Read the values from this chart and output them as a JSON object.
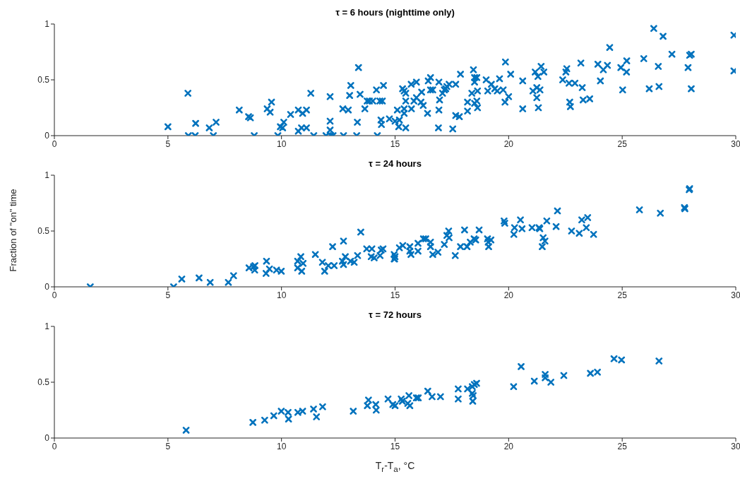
{
  "chart_data": [
    {
      "type": "scatter",
      "title": "τ = 6 hours (nighttime only)",
      "color": "#0072bd",
      "marker": "cross",
      "grid": false,
      "xlim": [
        0,
        30
      ],
      "xticks": [
        0,
        5,
        10,
        15,
        20,
        25,
        30
      ],
      "ylim": [
        0,
        1
      ],
      "yticks": [
        0,
        0.5,
        1
      ],
      "x": [
        5.0,
        5.88,
        5.9,
        6.2,
        6.22,
        6.82,
        7.0,
        7.12,
        8.14,
        8.55,
        8.63,
        8.8,
        9.37,
        9.5,
        9.56,
        9.84,
        9.95,
        10.1,
        10.05,
        10.4,
        10.74,
        10.93,
        11.1,
        10.74,
        10.88,
        11.1,
        11.29,
        11.42,
        11.96,
        12.17,
        12.27,
        12.14,
        12.14,
        12.14,
        12.7,
        12.94,
        12.73,
        13.0,
        13.05,
        13.31,
        13.34,
        13.39,
        13.46,
        13.67,
        13.77,
        13.87,
        14.02,
        14.33,
        14.44,
        14.18,
        14.49,
        14.22,
        14.38,
        14.4,
        14.75,
        15.0,
        15.19,
        15.16,
        15.47,
        15.1,
        15.4,
        15.4,
        15.33,
        15.4,
        15.47,
        15.47,
        15.71,
        15.94,
        15.72,
        15.83,
        15.94,
        16.14,
        16.24,
        16.17,
        16.43,
        16.46,
        16.56,
        16.56,
        16.66,
        16.93,
        16.96,
        16.93,
        16.91,
        17.09,
        17.17,
        17.28,
        17.38,
        17.23,
        17.54,
        17.67,
        17.83,
        17.67,
        17.88,
        18.19,
        18.19,
        18.38,
        18.45,
        18.5,
        18.5,
        18.6,
        18.63,
        18.6,
        18.63,
        18.5,
        19.01,
        19.24,
        19.08,
        19.39,
        19.6,
        19.5,
        19.76,
        19.84,
        20.0,
        19.86,
        20.09,
        20.62,
        20.62,
        21.07,
        21.17,
        21.24,
        21.24,
        21.29,
        21.38,
        21.31,
        21.43,
        21.55,
        22.38,
        22.52,
        22.56,
        22.66,
        22.92,
        22.69,
        22.72,
        23.18,
        23.24,
        23.28,
        23.57,
        23.93,
        24.04,
        24.17,
        24.35,
        24.45,
        24.94,
        25.02,
        25.2,
        25.19,
        25.95,
        26.19,
        26.39,
        26.59,
        26.62,
        26.8,
        27.19,
        27.9,
        27.97,
        28.04,
        28.04,
        29.92,
        29.92
      ],
      "values": [
        0.08,
        0.38,
        0,
        0,
        0.11,
        0.07,
        0,
        0.12,
        0.23,
        0.17,
        0.16,
        0,
        0.24,
        0.21,
        0.3,
        0,
        0.08,
        0.12,
        0.07,
        0.19,
        0.23,
        0.2,
        0.23,
        0.04,
        0.07,
        0.07,
        0.38,
        0,
        0,
        0,
        0,
        0.35,
        0.13,
        0.05,
        0.24,
        0.23,
        0,
        0.36,
        0.45,
        0,
        0.12,
        0.61,
        0.37,
        0.24,
        0.31,
        0.31,
        0.31,
        0.31,
        0.31,
        0.41,
        0.45,
        0,
        0.14,
        0.1,
        0.15,
        0.13,
        0.14,
        0.08,
        0.07,
        0.23,
        0.24,
        0.2,
        0.42,
        0.4,
        0.38,
        0.31,
        0.46,
        0.48,
        0.24,
        0.31,
        0.34,
        0.3,
        0.27,
        0.39,
        0.2,
        0.49,
        0.52,
        0.41,
        0.41,
        0.48,
        0.32,
        0.23,
        0.07,
        0.38,
        0.41,
        0.44,
        0.46,
        0.42,
        0.06,
        0.18,
        0.17,
        0.46,
        0.55,
        0.3,
        0.22,
        0.38,
        0.59,
        0.52,
        0.48,
        0.52,
        0.4,
        0.31,
        0.25,
        0.29,
        0.5,
        0.46,
        0.4,
        0.42,
        0.51,
        0.4,
        0.41,
        0.3,
        0.35,
        0.66,
        0.55,
        0.49,
        0.24,
        0.4,
        0.57,
        0.43,
        0.34,
        0.53,
        0.41,
        0.25,
        0.62,
        0.57,
        0.5,
        0.57,
        0.6,
        0.47,
        0.47,
        0.3,
        0.26,
        0.65,
        0.43,
        0.32,
        0.33,
        0.64,
        0.49,
        0.59,
        0.63,
        0.79,
        0.61,
        0.41,
        0.67,
        0.57,
        0.69,
        0.42,
        0.96,
        0.62,
        0.44,
        0.89,
        0.73,
        0.61,
        0.72,
        0.73,
        0.42,
        0.9,
        0.58
      ]
    },
    {
      "type": "scatter",
      "title": "τ = 24 hours",
      "ylabel": "Fraction of \"on\" time",
      "color": "#0072bd",
      "marker": "cross",
      "grid": false,
      "xlim": [
        0,
        30
      ],
      "xticks": [
        0,
        5,
        10,
        15,
        20,
        25,
        30
      ],
      "ylim": [
        0,
        1
      ],
      "yticks": [
        0,
        0.5,
        1
      ],
      "x": [
        1.58,
        5.25,
        5.61,
        6.37,
        6.86,
        7.66,
        7.89,
        8.57,
        8.77,
        8.82,
        8.83,
        9.34,
        9.32,
        9.47,
        9.78,
        9.99,
        10.71,
        10.71,
        10.85,
        10.89,
        10.95,
        11.49,
        11.8,
        11.9,
        12.06,
        12.32,
        12.25,
        12.73,
        12.68,
        12.73,
        12.81,
        13.04,
        13.2,
        13.35,
        13.49,
        13.75,
        13.98,
        13.95,
        14.08,
        14.34,
        14.39,
        14.47,
        14.96,
        14.96,
        15.0,
        14.98,
        15.19,
        15.34,
        15.65,
        15.65,
        15.7,
        16.01,
        16.01,
        16.25,
        16.35,
        16.56,
        16.56,
        16.66,
        16.89,
        17.17,
        17.28,
        17.36,
        17.38,
        17.65,
        17.88,
        18.06,
        18.17,
        18.31,
        18.48,
        18.55,
        18.7,
        19.07,
        19.1,
        19.12,
        19.22,
        19.8,
        19.83,
        20.23,
        20.26,
        20.52,
        20.59,
        21.03,
        21.34,
        21.37,
        21.52,
        21.48,
        21.6,
        21.68,
        22.09,
        22.15,
        22.77,
        23.11,
        23.22,
        23.42,
        23.48,
        23.74,
        25.76,
        26.68,
        27.74,
        27.76,
        27.95,
        27.97
      ],
      "values": [
        0,
        0,
        0.07,
        0.08,
        0.04,
        0.04,
        0.1,
        0.17,
        0.18,
        0.15,
        0.19,
        0.23,
        0.12,
        0.16,
        0.15,
        0.14,
        0.23,
        0.17,
        0.27,
        0.14,
        0.21,
        0.29,
        0.22,
        0.14,
        0.19,
        0.19,
        0.36,
        0.41,
        0.23,
        0.2,
        0.27,
        0.23,
        0.22,
        0.28,
        0.49,
        0.34,
        0.34,
        0.27,
        0.26,
        0.28,
        0.33,
        0.34,
        0.29,
        0.25,
        0.27,
        0.25,
        0.35,
        0.37,
        0.36,
        0.32,
        0.29,
        0.39,
        0.32,
        0.43,
        0.43,
        0.4,
        0.36,
        0.29,
        0.31,
        0.38,
        0.46,
        0.5,
        0.44,
        0.28,
        0.36,
        0.51,
        0.36,
        0.4,
        0.43,
        0.42,
        0.51,
        0.43,
        0.4,
        0.36,
        0.42,
        0.59,
        0.57,
        0.47,
        0.53,
        0.6,
        0.52,
        0.53,
        0.53,
        0.52,
        0.44,
        0.36,
        0.41,
        0.59,
        0.54,
        0.68,
        0.5,
        0.48,
        0.6,
        0.53,
        0.62,
        0.47,
        0.69,
        0.66,
        0.71,
        0.7,
        0.87,
        0.88
      ]
    },
    {
      "type": "scatter",
      "title": "τ = 72 hours",
      "xlabel": "T$_{r}$-T$_{a}$, °C",
      "color": "#0072bd",
      "marker": "cross",
      "grid": false,
      "xlim": [
        0,
        30
      ],
      "xticks": [
        0,
        5,
        10,
        15,
        20,
        25,
        30
      ],
      "ylim": [
        0,
        1
      ],
      "yticks": [
        0,
        0.5,
        1
      ],
      "x": [
        5.8,
        8.74,
        9.26,
        9.66,
        9.99,
        10.29,
        10.31,
        10.72,
        10.93,
        11.41,
        11.54,
        11.81,
        13.16,
        13.78,
        13.83,
        14.15,
        14.17,
        14.69,
        14.9,
        15.0,
        15.27,
        15.32,
        15.61,
        15.56,
        15.65,
        15.94,
        16.02,
        16.44,
        16.63,
        17.0,
        17.78,
        17.78,
        18.19,
        18.4,
        18.49,
        18.59,
        18.4,
        18.44,
        18.42,
        20.22,
        20.55,
        21.13,
        21.61,
        21.61,
        21.86,
        22.43,
        23.6,
        23.91,
        24.64,
        24.97,
        26.62
      ],
      "values": [
        0.07,
        0.14,
        0.16,
        0.2,
        0.24,
        0.23,
        0.17,
        0.23,
        0.24,
        0.26,
        0.19,
        0.28,
        0.24,
        0.29,
        0.34,
        0.3,
        0.25,
        0.35,
        0.3,
        0.29,
        0.35,
        0.33,
        0.38,
        0.31,
        0.29,
        0.36,
        0.36,
        0.42,
        0.37,
        0.37,
        0.44,
        0.35,
        0.44,
        0.46,
        0.48,
        0.49,
        0.4,
        0.38,
        0.33,
        0.46,
        0.64,
        0.51,
        0.57,
        0.54,
        0.5,
        0.56,
        0.58,
        0.59,
        0.71,
        0.7,
        0.69
      ]
    }
  ]
}
